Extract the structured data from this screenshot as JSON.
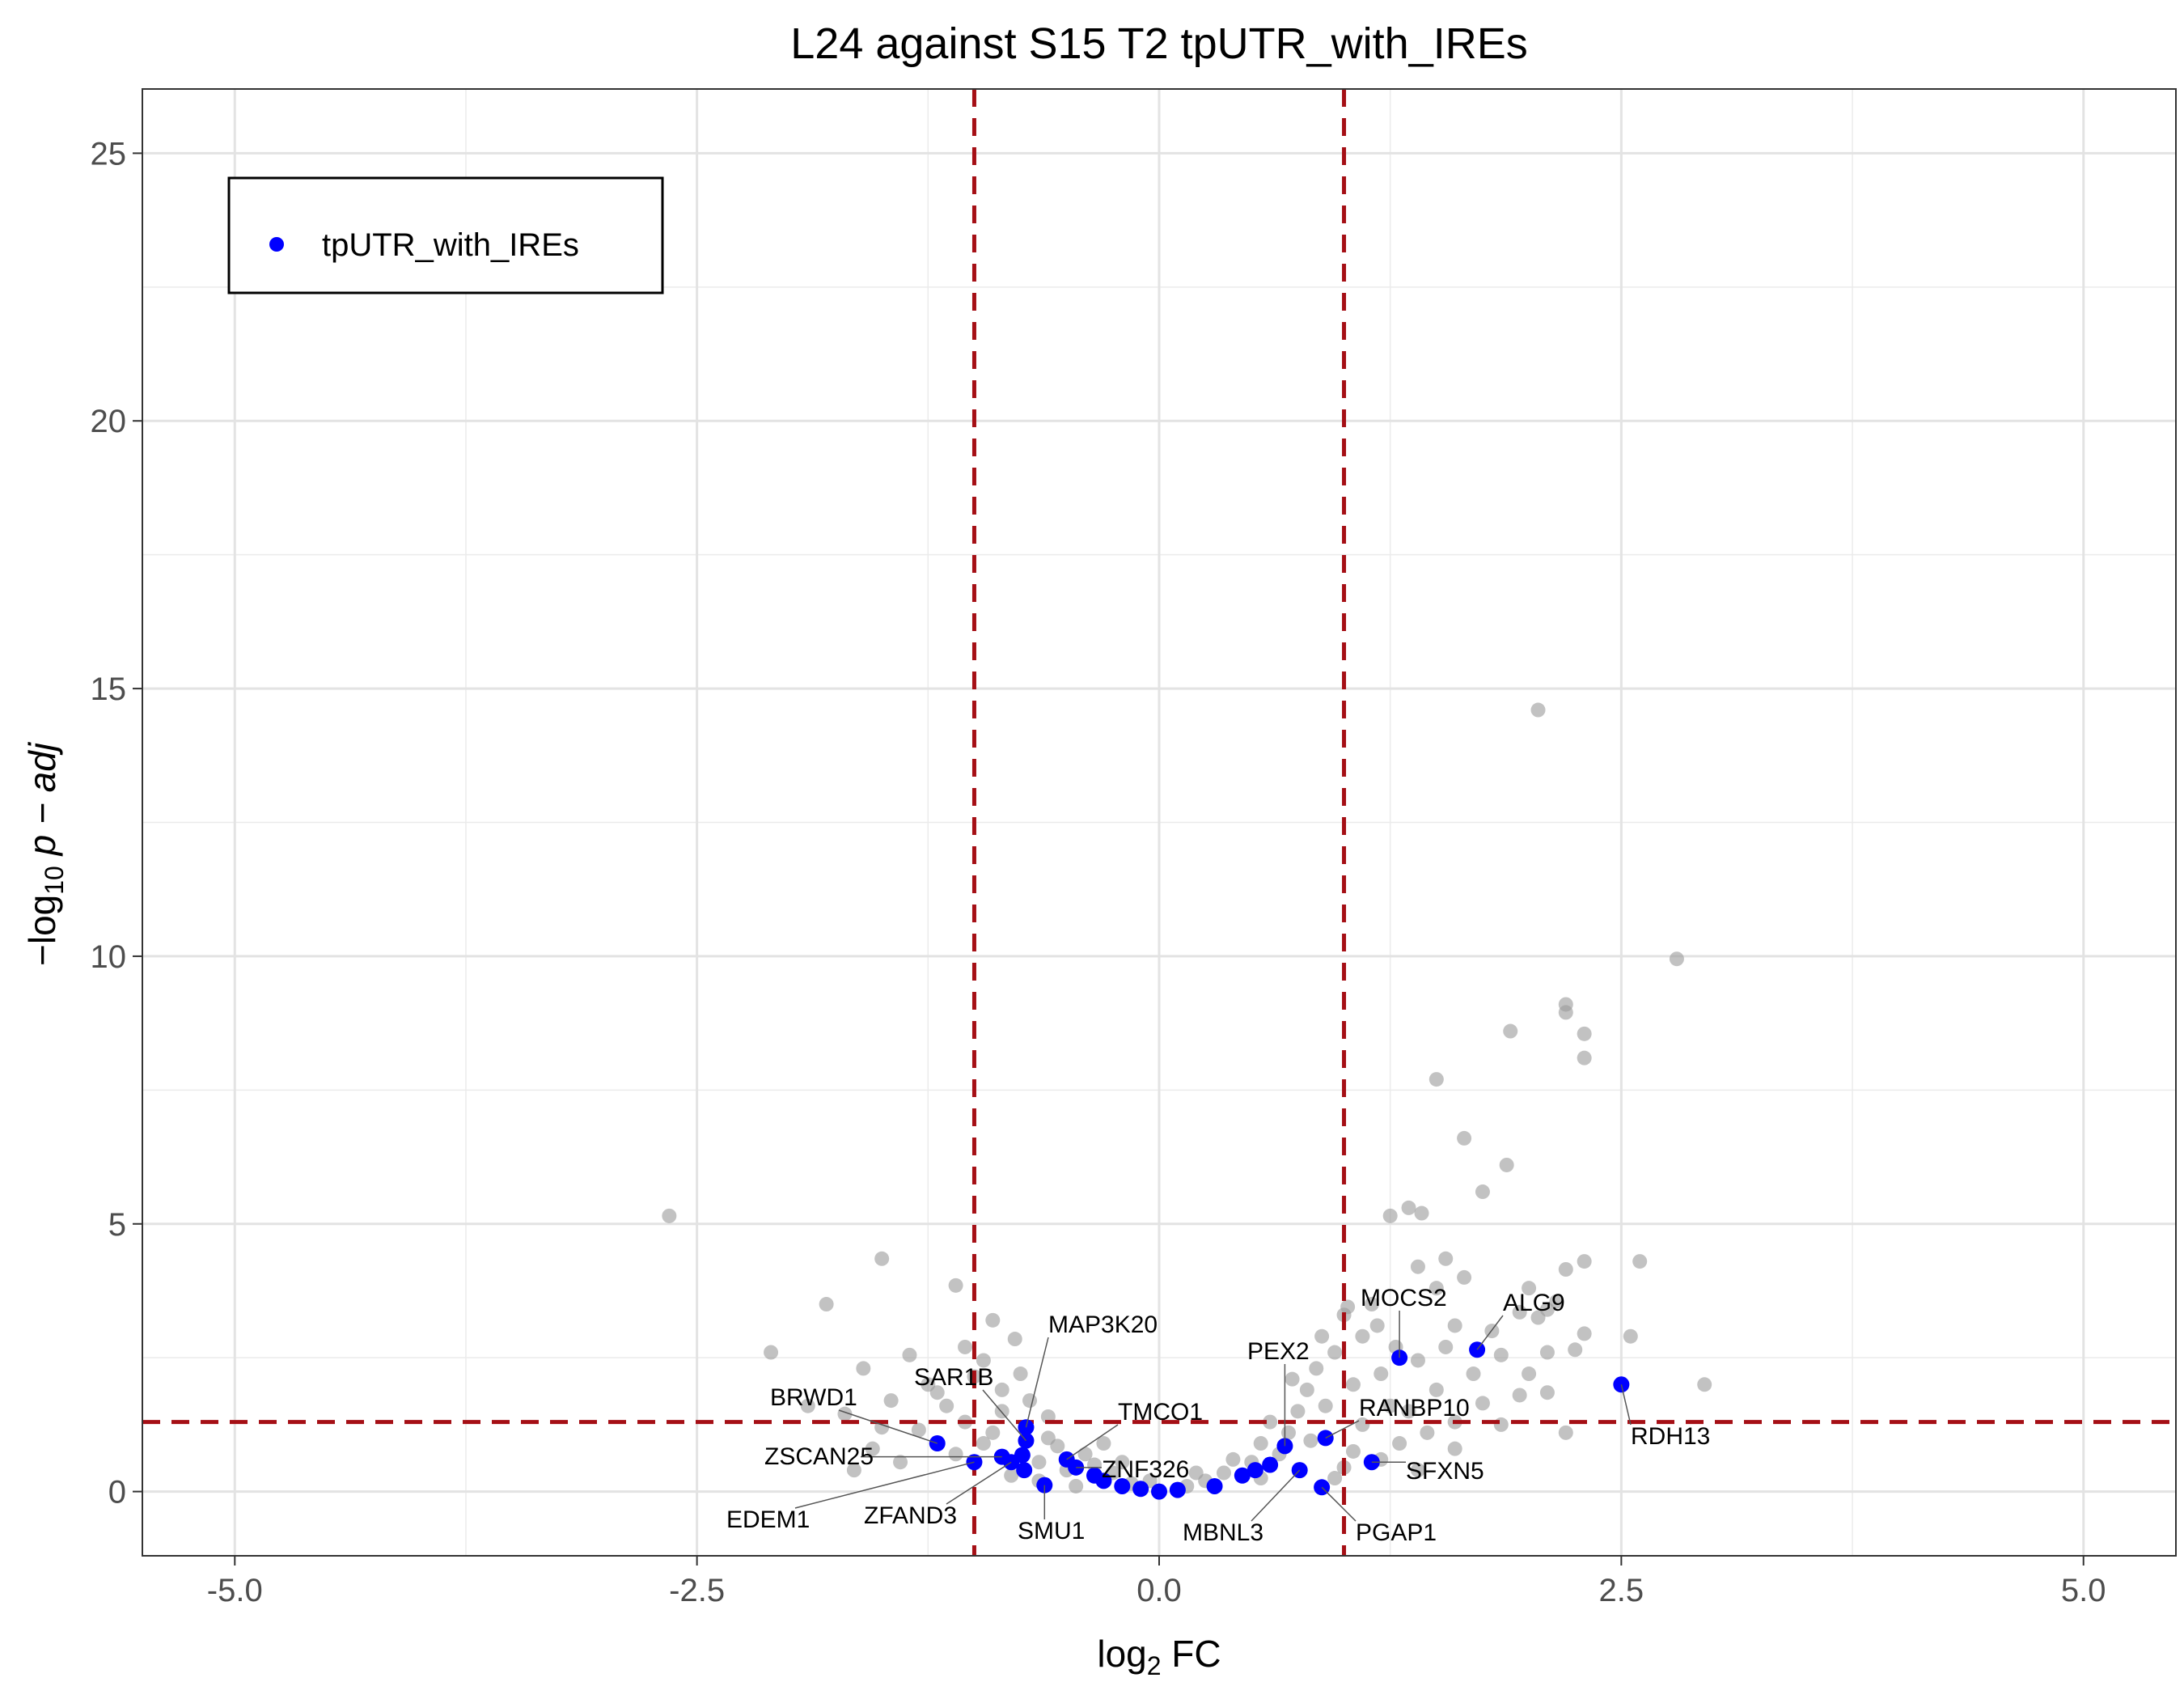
{
  "chart_data": {
    "type": "scatter",
    "title": "L24 against S15 T2 tpUTR_with_IREs",
    "xlabel": {
      "base": "log",
      "sub": "2",
      "rest": " FC"
    },
    "ylabel": {
      "prefix": "−log",
      "sub": "10",
      "rest": " p − adj"
    },
    "xlim": [
      -5.5,
      5.5
    ],
    "ylim": [
      -1.2,
      26.2
    ],
    "x_ticks": [
      -5,
      -2.5,
      0,
      2.5,
      5
    ],
    "x_tick_labels": [
      "-5.0",
      "-2.5",
      "0.0",
      "2.5",
      "5.0"
    ],
    "y_ticks": [
      0,
      5,
      10,
      15,
      20,
      25
    ],
    "y_tick_labels": [
      "0",
      "5",
      "10",
      "15",
      "20",
      "25"
    ],
    "grid": true,
    "thresholds": {
      "vertical": [
        -1,
        1
      ],
      "horizontal": 1.3,
      "color": "#a50f15",
      "style": "dashed"
    },
    "legend": {
      "position": "top-left",
      "entries": [
        {
          "label": "tpUTR_with_IREs",
          "color": "#0000ff"
        }
      ]
    },
    "background_color": "#999999",
    "series": [
      {
        "name": "tpUTR_with_IREs",
        "color": "#0000ff",
        "points": [
          {
            "x": -1.2,
            "y": 0.9
          },
          {
            "x": -1.0,
            "y": 0.55
          },
          {
            "x": -0.85,
            "y": 0.65
          },
          {
            "x": -0.8,
            "y": 0.55
          },
          {
            "x": -0.72,
            "y": 1.2
          },
          {
            "x": -0.72,
            "y": 0.95
          },
          {
            "x": -0.73,
            "y": 0.4
          },
          {
            "x": -0.74,
            "y": 0.68
          },
          {
            "x": -0.62,
            "y": 0.12
          },
          {
            "x": -0.5,
            "y": 0.6
          },
          {
            "x": -0.45,
            "y": 0.45
          },
          {
            "x": -0.35,
            "y": 0.3
          },
          {
            "x": -0.3,
            "y": 0.2
          },
          {
            "x": -0.2,
            "y": 0.1
          },
          {
            "x": -0.1,
            "y": 0.05
          },
          {
            "x": 0.0,
            "y": 0.0
          },
          {
            "x": 0.1,
            "y": 0.03
          },
          {
            "x": 0.3,
            "y": 0.1
          },
          {
            "x": 0.45,
            "y": 0.3
          },
          {
            "x": 0.52,
            "y": 0.4
          },
          {
            "x": 0.6,
            "y": 0.5
          },
          {
            "x": 0.68,
            "y": 0.85
          },
          {
            "x": 0.76,
            "y": 0.4
          },
          {
            "x": 0.88,
            "y": 0.08
          },
          {
            "x": 0.9,
            "y": 1.0
          },
          {
            "x": 1.15,
            "y": 0.55
          },
          {
            "x": 1.3,
            "y": 2.5
          },
          {
            "x": 1.72,
            "y": 2.65
          },
          {
            "x": 2.5,
            "y": 2.0
          }
        ]
      }
    ],
    "background_points": [
      {
        "x": -2.65,
        "y": 5.15
      },
      {
        "x": -1.5,
        "y": 4.35
      },
      {
        "x": -1.1,
        "y": 3.85
      },
      {
        "x": -1.8,
        "y": 3.5
      },
      {
        "x": -0.9,
        "y": 3.2
      },
      {
        "x": -2.1,
        "y": 2.6
      },
      {
        "x": -1.6,
        "y": 2.3
      },
      {
        "x": -1.35,
        "y": 2.55
      },
      {
        "x": -1.05,
        "y": 2.7
      },
      {
        "x": -0.95,
        "y": 2.45
      },
      {
        "x": -0.78,
        "y": 2.85
      },
      {
        "x": -1.25,
        "y": 2.0
      },
      {
        "x": -1.45,
        "y": 1.7
      },
      {
        "x": -1.7,
        "y": 1.45
      },
      {
        "x": -1.9,
        "y": 1.6
      },
      {
        "x": -1.15,
        "y": 1.6
      },
      {
        "x": -0.85,
        "y": 1.9
      },
      {
        "x": -0.6,
        "y": 1.4
      },
      {
        "x": -1.55,
        "y": 0.8
      },
      {
        "x": -1.4,
        "y": 0.55
      },
      {
        "x": -1.65,
        "y": 0.4
      },
      {
        "x": -1.3,
        "y": 1.15
      },
      {
        "x": -1.05,
        "y": 1.3
      },
      {
        "x": -0.95,
        "y": 0.9
      },
      {
        "x": -1.1,
        "y": 0.7
      },
      {
        "x": -0.9,
        "y": 1.1
      },
      {
        "x": -0.85,
        "y": 1.5
      },
      {
        "x": -0.7,
        "y": 1.7
      },
      {
        "x": -0.8,
        "y": 0.3
      },
      {
        "x": -0.55,
        "y": 0.85
      },
      {
        "x": -0.65,
        "y": 0.2
      },
      {
        "x": -0.5,
        "y": 0.4
      },
      {
        "x": -0.4,
        "y": 0.7
      },
      {
        "x": -0.35,
        "y": 0.5
      },
      {
        "x": -0.25,
        "y": 0.35
      },
      {
        "x": -0.15,
        "y": 0.15
      },
      {
        "x": -0.45,
        "y": 0.1
      },
      {
        "x": -0.2,
        "y": 0.55
      },
      {
        "x": -1.0,
        "y": 2.15
      },
      {
        "x": -0.75,
        "y": 2.2
      },
      {
        "x": -1.2,
        "y": 1.85
      },
      {
        "x": -1.5,
        "y": 1.2
      },
      {
        "x": 0.15,
        "y": 0.1
      },
      {
        "x": 0.25,
        "y": 0.2
      },
      {
        "x": 0.35,
        "y": 0.35
      },
      {
        "x": 0.5,
        "y": 0.55
      },
      {
        "x": 0.55,
        "y": 0.25
      },
      {
        "x": 0.65,
        "y": 0.7
      },
      {
        "x": 0.7,
        "y": 1.1
      },
      {
        "x": 0.75,
        "y": 1.5
      },
      {
        "x": 0.8,
        "y": 1.9
      },
      {
        "x": 0.82,
        "y": 0.95
      },
      {
        "x": 0.85,
        "y": 2.3
      },
      {
        "x": 0.9,
        "y": 1.6
      },
      {
        "x": 0.95,
        "y": 2.6
      },
      {
        "x": 1.0,
        "y": 3.3
      },
      {
        "x": 1.05,
        "y": 2.0
      },
      {
        "x": 1.1,
        "y": 2.9
      },
      {
        "x": 1.15,
        "y": 3.5
      },
      {
        "x": 1.2,
        "y": 2.2
      },
      {
        "x": 1.25,
        "y": 5.15
      },
      {
        "x": 1.35,
        "y": 5.3
      },
      {
        "x": 1.42,
        "y": 5.2
      },
      {
        "x": 1.4,
        "y": 4.2
      },
      {
        "x": 1.5,
        "y": 3.8
      },
      {
        "x": 1.55,
        "y": 4.35
      },
      {
        "x": 1.6,
        "y": 3.1
      },
      {
        "x": 1.65,
        "y": 4.0
      },
      {
        "x": 1.5,
        "y": 7.7
      },
      {
        "x": 1.65,
        "y": 6.6
      },
      {
        "x": 1.75,
        "y": 5.6
      },
      {
        "x": 1.88,
        "y": 6.1
      },
      {
        "x": 1.9,
        "y": 8.6
      },
      {
        "x": 2.05,
        "y": 14.6
      },
      {
        "x": 2.2,
        "y": 9.1
      },
      {
        "x": 2.2,
        "y": 8.95
      },
      {
        "x": 2.3,
        "y": 8.55
      },
      {
        "x": 2.3,
        "y": 8.1
      },
      {
        "x": 2.8,
        "y": 9.95
      },
      {
        "x": 2.3,
        "y": 4.3
      },
      {
        "x": 2.6,
        "y": 4.3
      },
      {
        "x": 2.2,
        "y": 4.15
      },
      {
        "x": 2.0,
        "y": 3.8
      },
      {
        "x": 2.1,
        "y": 3.4
      },
      {
        "x": 2.3,
        "y": 2.95
      },
      {
        "x": 2.55,
        "y": 2.9
      },
      {
        "x": 2.1,
        "y": 2.6
      },
      {
        "x": 2.0,
        "y": 2.2
      },
      {
        "x": 1.95,
        "y": 1.8
      },
      {
        "x": 2.1,
        "y": 1.85
      },
      {
        "x": 2.95,
        "y": 2.0
      },
      {
        "x": 2.2,
        "y": 1.1
      },
      {
        "x": 1.85,
        "y": 1.25
      },
      {
        "x": 1.75,
        "y": 1.65
      },
      {
        "x": 1.6,
        "y": 1.3
      },
      {
        "x": 1.5,
        "y": 1.9
      },
      {
        "x": 1.45,
        "y": 1.1
      },
      {
        "x": 1.35,
        "y": 1.5
      },
      {
        "x": 1.3,
        "y": 0.9
      },
      {
        "x": 1.25,
        "y": 1.6
      },
      {
        "x": 1.1,
        "y": 1.25
      },
      {
        "x": 1.05,
        "y": 0.75
      },
      {
        "x": 1.2,
        "y": 0.6
      },
      {
        "x": 1.4,
        "y": 0.4
      },
      {
        "x": 1.6,
        "y": 0.8
      },
      {
        "x": 1.0,
        "y": 0.45
      },
      {
        "x": 0.95,
        "y": 0.25
      },
      {
        "x": 0.6,
        "y": 1.3
      },
      {
        "x": 0.72,
        "y": 2.1
      },
      {
        "x": 0.88,
        "y": 2.9
      },
      {
        "x": 1.02,
        "y": 3.45
      },
      {
        "x": 1.18,
        "y": 3.1
      },
      {
        "x": 1.28,
        "y": 2.7
      },
      {
        "x": 1.4,
        "y": 2.45
      },
      {
        "x": 1.55,
        "y": 2.7
      },
      {
        "x": 1.7,
        "y": 2.2
      },
      {
        "x": 1.8,
        "y": 3.0
      },
      {
        "x": 1.95,
        "y": 3.35
      },
      {
        "x": 2.15,
        "y": 3.55
      },
      {
        "x": 2.05,
        "y": 3.25
      },
      {
        "x": 1.85,
        "y": 2.55
      },
      {
        "x": 2.25,
        "y": 2.65
      },
      {
        "x": 0.55,
        "y": 0.9
      },
      {
        "x": 0.4,
        "y": 0.6
      },
      {
        "x": 0.2,
        "y": 0.35
      },
      {
        "x": -0.05,
        "y": 0.2
      },
      {
        "x": -0.3,
        "y": 0.9
      },
      {
        "x": -0.6,
        "y": 1.0
      },
      {
        "x": -0.65,
        "y": 0.55
      }
    ],
    "annotations": [
      {
        "label": "MAP3K20",
        "x": -0.72,
        "y": 1.2
      },
      {
        "label": "SAR1B",
        "x": -0.72,
        "y": 0.95
      },
      {
        "label": "BRWD1",
        "x": -1.2,
        "y": 0.9
      },
      {
        "label": "TMCO1",
        "x": -0.5,
        "y": 0.6
      },
      {
        "label": "ZSCAN25",
        "x": -0.85,
        "y": 0.65
      },
      {
        "label": "ZNF326",
        "x": -0.45,
        "y": 0.45
      },
      {
        "label": "EDEM1",
        "x": -1.0,
        "y": 0.55
      },
      {
        "label": "ZFAND3",
        "x": -0.8,
        "y": 0.55
      },
      {
        "label": "SMU1",
        "x": -0.62,
        "y": 0.12
      },
      {
        "label": "MOCS2",
        "x": 1.3,
        "y": 2.5
      },
      {
        "label": "ALG9",
        "x": 1.72,
        "y": 2.65
      },
      {
        "label": "PEX2",
        "x": 0.68,
        "y": 0.85
      },
      {
        "label": "RANBP10",
        "x": 0.9,
        "y": 1.0
      },
      {
        "label": "SFXN5",
        "x": 1.15,
        "y": 0.55
      },
      {
        "label": "RDH13",
        "x": 2.5,
        "y": 2.0
      },
      {
        "label": "MBNL3",
        "x": 0.76,
        "y": 0.4
      },
      {
        "label": "PGAP1",
        "x": 0.88,
        "y": 0.08
      }
    ]
  }
}
